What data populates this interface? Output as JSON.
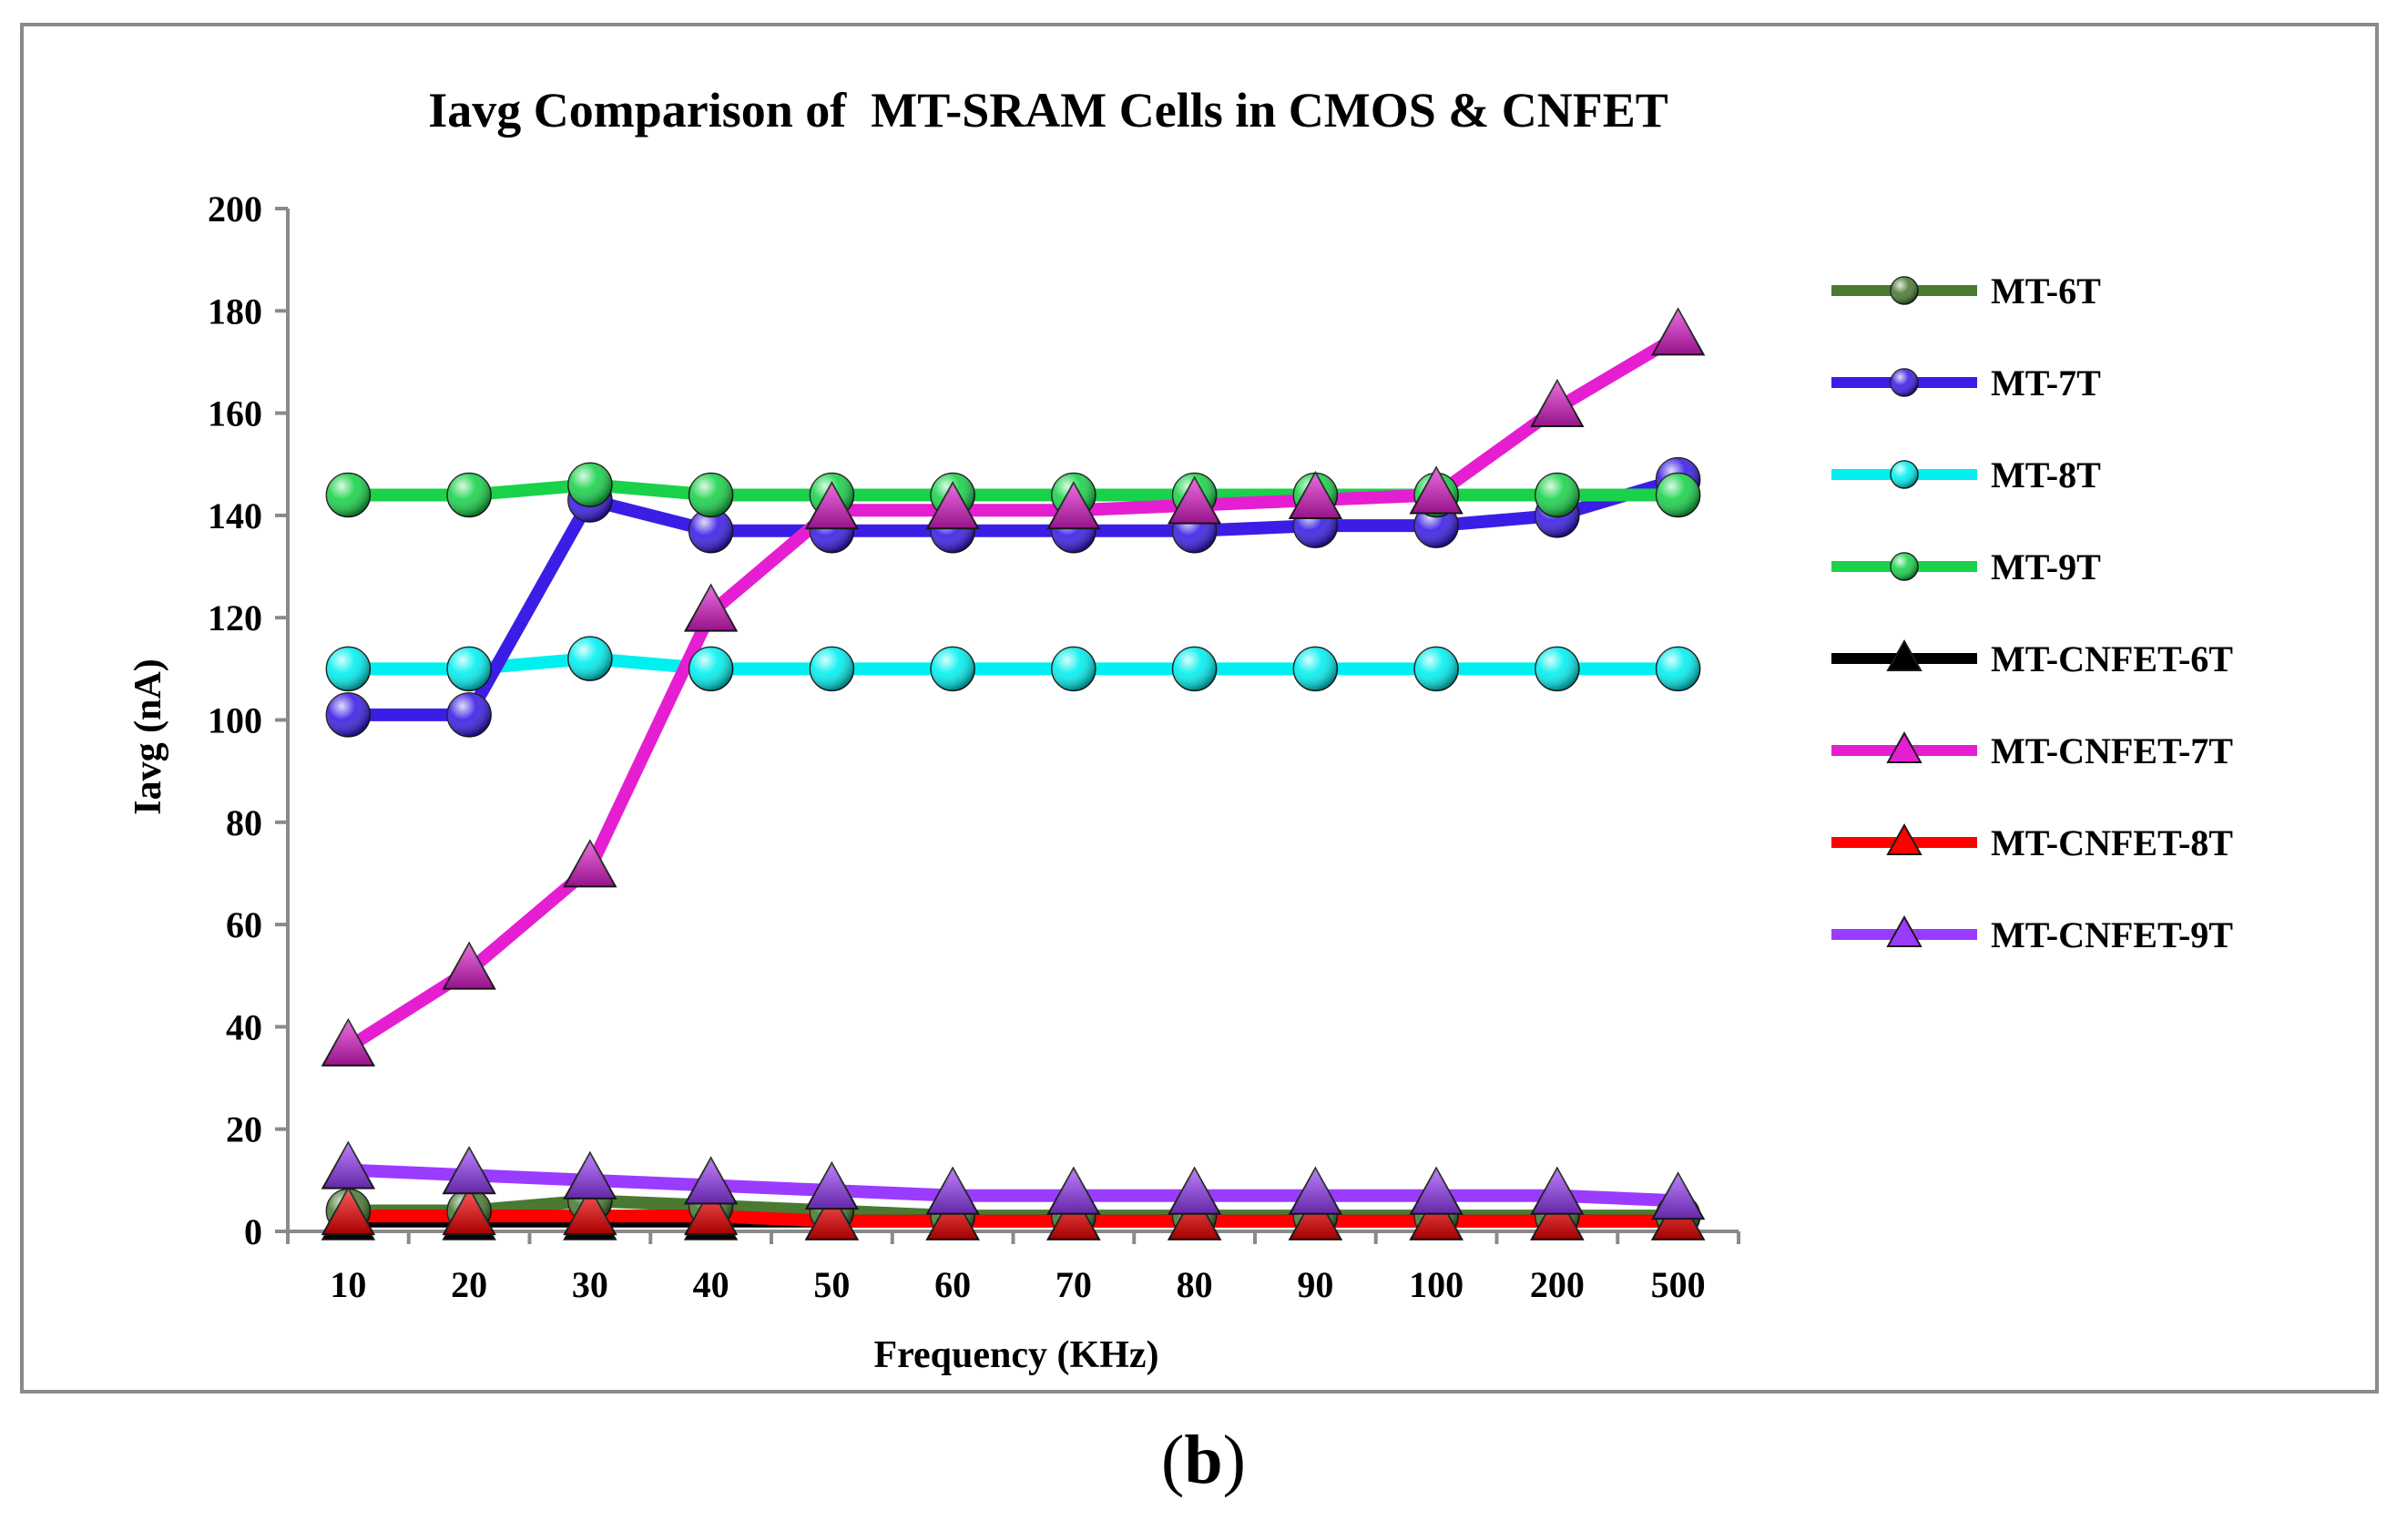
{
  "chart_data": {
    "type": "line",
    "title": "Iavg Comparison of  MT-SRAM Cells in CMOS & CNFET",
    "xlabel": "Frequency (KHz)",
    "ylabel": "Iavg (nA)",
    "ylim": [
      0,
      200
    ],
    "yticks": [
      "0",
      "20",
      "40",
      "60",
      "80",
      "100",
      "120",
      "140",
      "160",
      "180",
      "200"
    ],
    "categories": [
      "10",
      "20",
      "30",
      "40",
      "50",
      "60",
      "70",
      "80",
      "90",
      "100",
      "200",
      "500"
    ],
    "grid": false,
    "legend_position": "right",
    "series": [
      {
        "name": "MT-6T",
        "color": "#4a7a32",
        "marker": "circle",
        "values": [
          4,
          4,
          6,
          5,
          4,
          3,
          3,
          3,
          3,
          3,
          3,
          3
        ]
      },
      {
        "name": "MT-7T",
        "color": "#3a1ee6",
        "marker": "circle",
        "values": [
          101,
          101,
          143,
          137,
          137,
          137,
          137,
          137,
          138,
          138,
          140,
          147
        ]
      },
      {
        "name": "MT-8T",
        "color": "#00f0f0",
        "marker": "circle",
        "values": [
          110,
          110,
          112,
          110,
          110,
          110,
          110,
          110,
          110,
          110,
          110,
          110
        ]
      },
      {
        "name": "MT-9T",
        "color": "#19d24a",
        "marker": "circle",
        "values": [
          144,
          144,
          146,
          144,
          144,
          144,
          144,
          144,
          144,
          144,
          144,
          144
        ]
      },
      {
        "name": "MT-CNFET-6T",
        "color": "#000000",
        "marker": "triangle",
        "values": [
          2,
          2,
          2,
          2,
          2,
          2,
          2,
          2,
          2,
          2,
          2,
          2
        ]
      },
      {
        "name": "MT-CNFET-7T",
        "color": "#e61ed2",
        "marker": "triangle",
        "values": [
          36,
          51,
          71,
          121,
          141,
          141,
          141,
          142,
          143,
          144,
          161,
          175
        ]
      },
      {
        "name": "MT-CNFET-8T",
        "color": "#ff0000",
        "marker": "triangle",
        "values": [
          3,
          3,
          3,
          3,
          2,
          2,
          2,
          2,
          2,
          2,
          2,
          2
        ]
      },
      {
        "name": "MT-CNFET-9T",
        "color": "#9a3cff",
        "marker": "triangle",
        "values": [
          12,
          11,
          10,
          9,
          8,
          7,
          7,
          7,
          7,
          7,
          7,
          6
        ]
      }
    ]
  },
  "caption": {
    "open": "(",
    "letter": "b",
    "close": ")"
  }
}
